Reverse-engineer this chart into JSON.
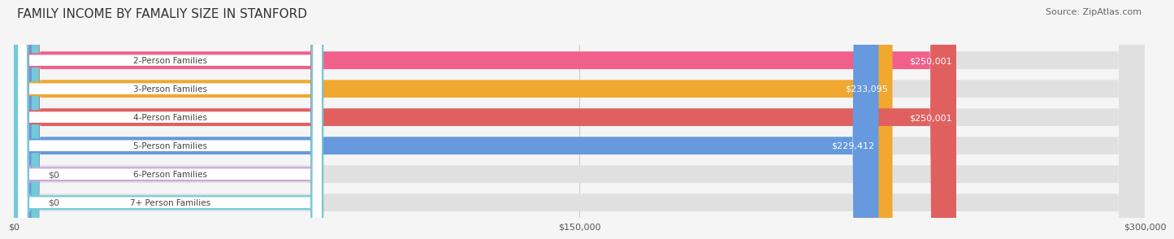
{
  "title": "FAMILY INCOME BY FAMALIY SIZE IN STANFORD",
  "source": "Source: ZipAtlas.com",
  "categories": [
    "2-Person Families",
    "3-Person Families",
    "4-Person Families",
    "5-Person Families",
    "6-Person Families",
    "7+ Person Families"
  ],
  "values": [
    250001,
    233095,
    250001,
    229412,
    0,
    0
  ],
  "bar_colors": [
    "#f0608a",
    "#f0a830",
    "#e06060",
    "#6699dd",
    "#c8a8d8",
    "#70ccd8"
  ],
  "value_labels": [
    "$250,001",
    "$233,095",
    "$250,001",
    "$229,412",
    "$0",
    "$0"
  ],
  "xmax": 300000,
  "xticks": [
    0,
    150000,
    300000
  ],
  "xticklabels": [
    "$0",
    "$150,000",
    "$300,000"
  ],
  "background_color": "#f5f5f5",
  "bar_background_color": "#e0e0e0",
  "title_fontsize": 11,
  "source_fontsize": 8
}
